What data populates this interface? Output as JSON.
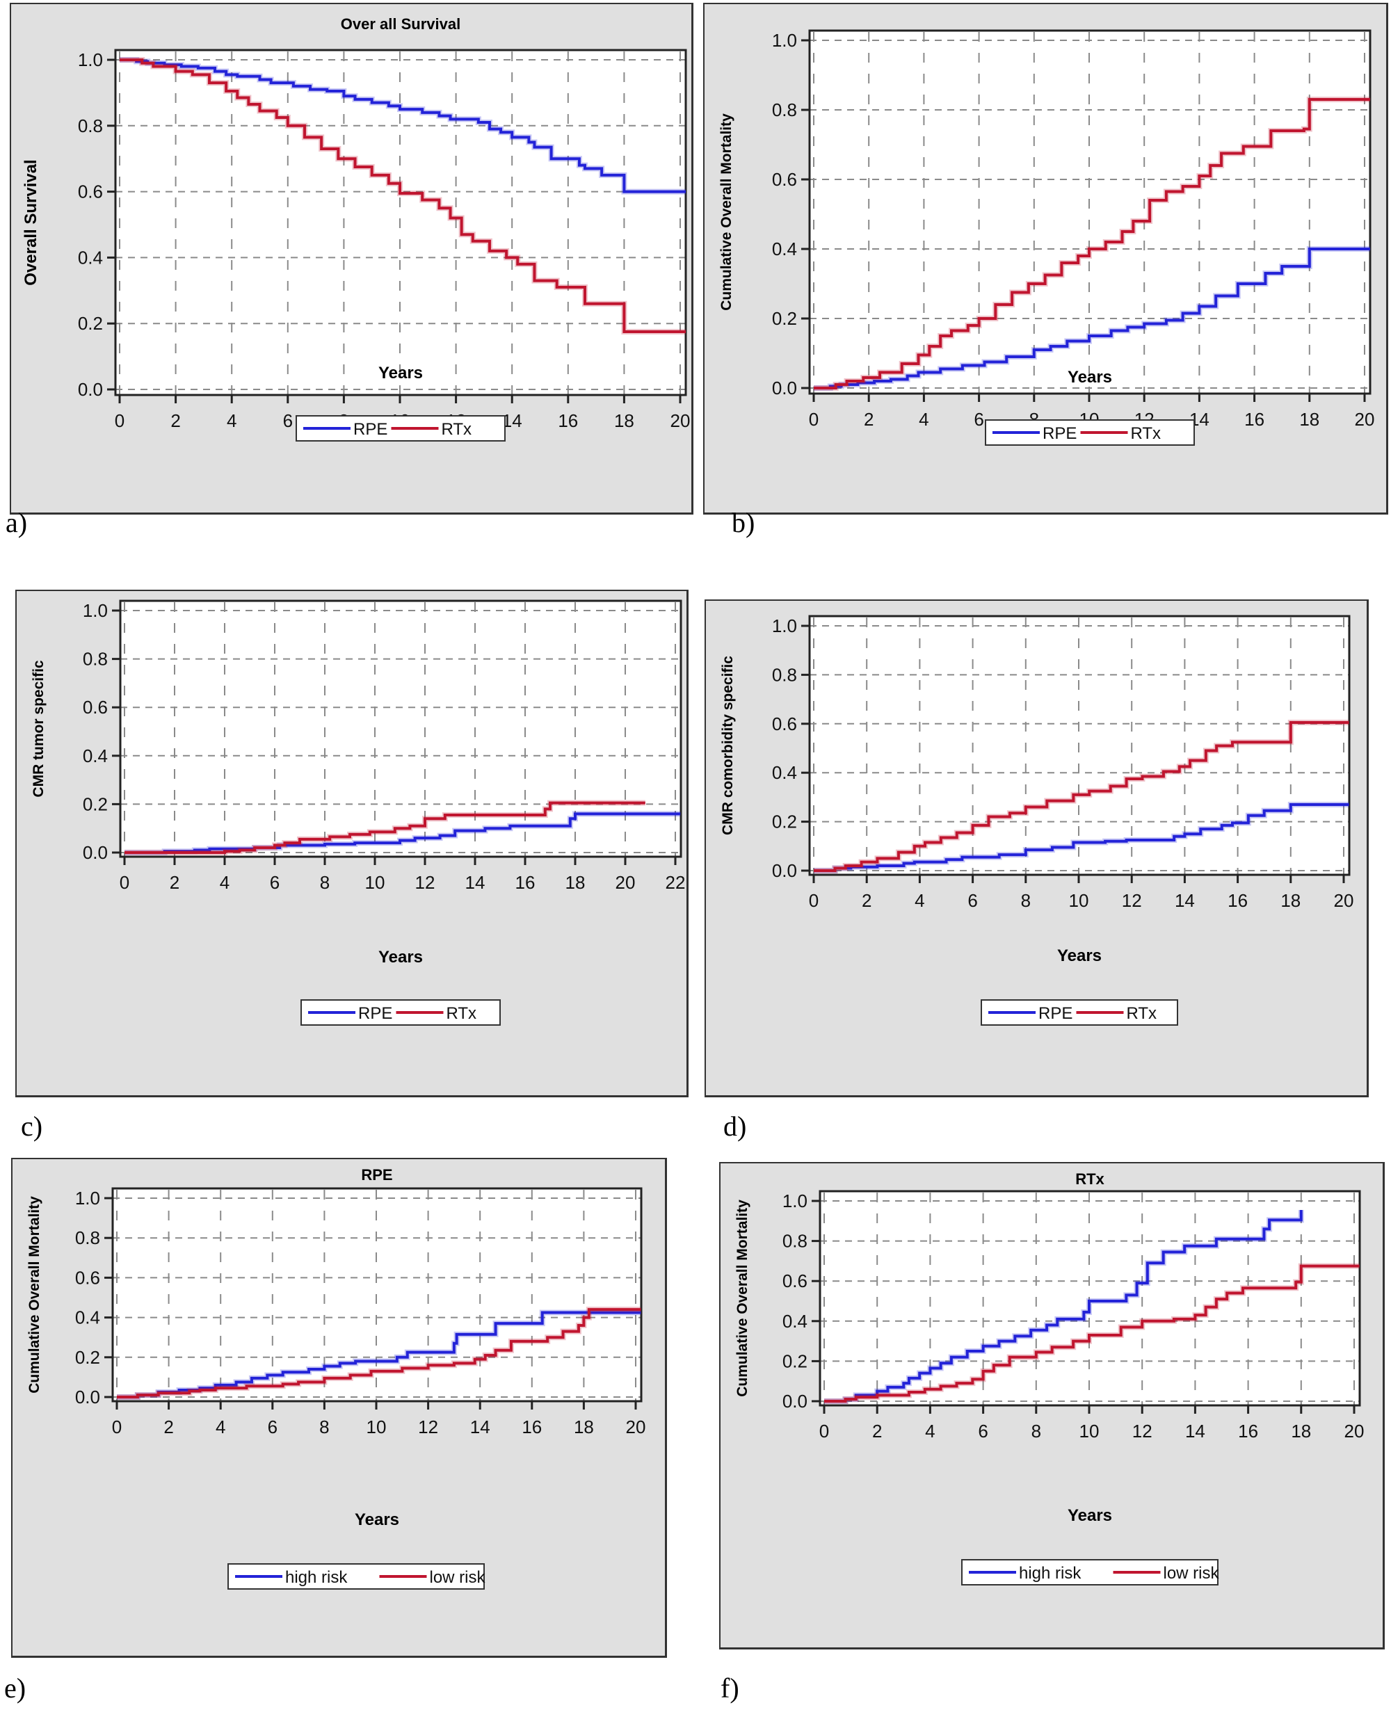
{
  "figure_labels": [
    "a)",
    "b)",
    "c)",
    "d)",
    "e)",
    "f)"
  ],
  "colors": {
    "blue": "#2323d8",
    "red": "#c0152f",
    "panel_bg": "#e0e0e0",
    "grid": "#8a8a8a"
  },
  "chart_data": [
    {
      "id": "a",
      "type": "line",
      "step": true,
      "title": "Over all Survival",
      "xlabel": "Years",
      "ylabel": "Overall Survival",
      "xlim": [
        0,
        20
      ],
      "ylim": [
        0,
        1.0
      ],
      "xticks": [
        0,
        2,
        4,
        6,
        8,
        10,
        12,
        14,
        16,
        18,
        20
      ],
      "yticks": [
        0.0,
        0.2,
        0.4,
        0.6,
        0.8,
        1.0
      ],
      "grid": true,
      "legend": "bottom-center",
      "series": [
        {
          "name": "RPE",
          "color": "blue",
          "x": [
            0,
            0.6,
            1.0,
            1.6,
            2.2,
            2.8,
            3.4,
            3.8,
            4.2,
            5.0,
            5.4,
            6.2,
            6.8,
            7.4,
            8.0,
            8.4,
            9.0,
            9.6,
            10.0,
            10.8,
            11.4,
            11.8,
            12.8,
            13.2,
            13.6,
            14.0,
            14.6,
            14.8,
            15.4,
            16.4,
            16.6,
            17.2,
            18.0,
            20.2
          ],
          "y": [
            1.0,
            0.995,
            0.99,
            0.985,
            0.98,
            0.975,
            0.965,
            0.955,
            0.95,
            0.94,
            0.93,
            0.92,
            0.91,
            0.905,
            0.89,
            0.88,
            0.87,
            0.86,
            0.85,
            0.84,
            0.83,
            0.82,
            0.81,
            0.79,
            0.78,
            0.765,
            0.75,
            0.735,
            0.7,
            0.68,
            0.67,
            0.65,
            0.6,
            0.6
          ]
        },
        {
          "name": "RTx",
          "color": "red",
          "x": [
            0,
            0.8,
            1.2,
            2.0,
            2.6,
            3.2,
            3.8,
            4.2,
            4.6,
            5.0,
            5.6,
            6.0,
            6.6,
            7.2,
            7.8,
            8.4,
            9.0,
            9.6,
            10.0,
            10.8,
            11.4,
            11.8,
            12.2,
            12.6,
            13.2,
            13.8,
            14.2,
            14.8,
            15.6,
            16.6,
            17.8,
            18.0,
            20.2
          ],
          "y": [
            1.0,
            0.99,
            0.98,
            0.965,
            0.955,
            0.93,
            0.905,
            0.885,
            0.865,
            0.845,
            0.825,
            0.8,
            0.765,
            0.73,
            0.7,
            0.675,
            0.65,
            0.625,
            0.595,
            0.575,
            0.55,
            0.52,
            0.47,
            0.45,
            0.42,
            0.4,
            0.38,
            0.33,
            0.31,
            0.26,
            0.26,
            0.175,
            0.175
          ]
        }
      ]
    },
    {
      "id": "b",
      "type": "line",
      "step": true,
      "title": "",
      "xlabel": "Years",
      "ylabel": "Cumulative Overall Mortality",
      "xlim": [
        0,
        20
      ],
      "ylim": [
        0,
        1.0
      ],
      "xticks": [
        0,
        2,
        4,
        6,
        8,
        10,
        12,
        14,
        16,
        18,
        20
      ],
      "yticks": [
        0.0,
        0.2,
        0.4,
        0.6,
        0.8,
        1.0
      ],
      "grid": true,
      "legend": "bottom-center",
      "series": [
        {
          "name": "RPE",
          "color": "blue",
          "x": [
            0,
            0.6,
            1.0,
            1.6,
            2.2,
            2.8,
            3.4,
            3.8,
            4.6,
            5.4,
            6.2,
            7.0,
            8.0,
            8.6,
            9.2,
            10.0,
            10.8,
            11.4,
            12.0,
            12.8,
            13.4,
            14.0,
            14.6,
            15.4,
            16.4,
            17.0,
            18.0,
            20.2
          ],
          "y": [
            0.0,
            0.005,
            0.01,
            0.015,
            0.02,
            0.025,
            0.035,
            0.045,
            0.055,
            0.065,
            0.075,
            0.09,
            0.11,
            0.12,
            0.135,
            0.15,
            0.165,
            0.175,
            0.185,
            0.195,
            0.215,
            0.235,
            0.265,
            0.3,
            0.33,
            0.35,
            0.4,
            0.4
          ]
        },
        {
          "name": "RTx",
          "color": "red",
          "x": [
            0,
            0.8,
            1.2,
            1.8,
            2.4,
            3.2,
            3.8,
            4.2,
            4.6,
            5.0,
            5.6,
            6.0,
            6.6,
            7.2,
            7.8,
            8.4,
            9.0,
            9.6,
            10.0,
            10.6,
            11.2,
            11.6,
            12.2,
            12.8,
            13.4,
            14.0,
            14.4,
            14.8,
            15.6,
            16.6,
            17.8,
            18.0,
            20.2
          ],
          "y": [
            0.0,
            0.01,
            0.02,
            0.03,
            0.045,
            0.07,
            0.095,
            0.12,
            0.15,
            0.165,
            0.18,
            0.2,
            0.24,
            0.275,
            0.3,
            0.325,
            0.36,
            0.38,
            0.4,
            0.42,
            0.45,
            0.48,
            0.54,
            0.565,
            0.58,
            0.61,
            0.64,
            0.675,
            0.695,
            0.74,
            0.745,
            0.83,
            0.83
          ]
        }
      ]
    },
    {
      "id": "c",
      "type": "line",
      "step": true,
      "title": "",
      "xlabel": "Years",
      "ylabel": "CMR tumor specific",
      "xlim": [
        0,
        22
      ],
      "ylim": [
        0,
        1.0
      ],
      "xticks": [
        0,
        2,
        4,
        6,
        8,
        10,
        12,
        14,
        16,
        18,
        20,
        22
      ],
      "yticks": [
        0.0,
        0.2,
        0.4,
        0.6,
        0.8,
        1.0
      ],
      "grid": true,
      "legend": "bottom-center",
      "series": [
        {
          "name": "RPE",
          "color": "blue",
          "x": [
            0,
            1.6,
            2.8,
            3.4,
            5.2,
            6.2,
            8.0,
            9.2,
            11.0,
            11.6,
            12.6,
            13.2,
            14.4,
            15.4,
            17.8,
            18.0,
            22.2
          ],
          "y": [
            0.0,
            0.005,
            0.01,
            0.015,
            0.02,
            0.03,
            0.035,
            0.04,
            0.05,
            0.06,
            0.07,
            0.09,
            0.1,
            0.11,
            0.14,
            0.16,
            0.16
          ]
        },
        {
          "name": "RTx",
          "color": "red",
          "x": [
            0,
            4.0,
            4.6,
            5.2,
            6.0,
            6.4,
            7.0,
            8.2,
            9.0,
            9.8,
            10.8,
            11.4,
            12.0,
            12.8,
            16.8,
            17.0,
            20.8
          ],
          "y": [
            0.0,
            0.005,
            0.01,
            0.02,
            0.03,
            0.04,
            0.055,
            0.065,
            0.075,
            0.085,
            0.1,
            0.11,
            0.14,
            0.155,
            0.18,
            0.205,
            0.205
          ]
        }
      ]
    },
    {
      "id": "d",
      "type": "line",
      "step": true,
      "title": "",
      "xlabel": "Years",
      "ylabel": "CMR comorbidity specific",
      "xlim": [
        0,
        20
      ],
      "ylim": [
        0,
        1.0
      ],
      "xticks": [
        0,
        2,
        4,
        6,
        8,
        10,
        12,
        14,
        16,
        18,
        20
      ],
      "yticks": [
        0.0,
        0.2,
        0.4,
        0.6,
        0.8,
        1.0
      ],
      "grid": true,
      "legend": "bottom-center",
      "series": [
        {
          "name": "RPE",
          "color": "blue",
          "x": [
            0,
            0.8,
            1.4,
            2.4,
            3.4,
            3.8,
            5.0,
            5.6,
            7.0,
            8.0,
            9.0,
            9.8,
            11.0,
            11.8,
            13.6,
            14.0,
            14.6,
            15.4,
            15.8,
            16.4,
            17.0,
            18.0,
            20.2
          ],
          "y": [
            0.0,
            0.01,
            0.015,
            0.02,
            0.03,
            0.035,
            0.045,
            0.055,
            0.065,
            0.085,
            0.095,
            0.115,
            0.12,
            0.125,
            0.14,
            0.15,
            0.17,
            0.185,
            0.195,
            0.225,
            0.245,
            0.27,
            0.27
          ]
        },
        {
          "name": "RTx",
          "color": "red",
          "x": [
            0,
            0.8,
            1.2,
            1.8,
            2.4,
            3.2,
            3.8,
            4.2,
            4.8,
            5.4,
            6.0,
            6.6,
            7.4,
            8.0,
            8.8,
            9.8,
            10.4,
            11.2,
            11.8,
            12.4,
            13.2,
            13.8,
            14.2,
            14.8,
            15.2,
            15.8,
            17.8,
            18.0,
            20.2
          ],
          "y": [
            0.0,
            0.01,
            0.02,
            0.035,
            0.05,
            0.075,
            0.1,
            0.115,
            0.135,
            0.155,
            0.185,
            0.22,
            0.235,
            0.26,
            0.285,
            0.31,
            0.325,
            0.345,
            0.375,
            0.385,
            0.405,
            0.425,
            0.45,
            0.49,
            0.51,
            0.525,
            0.525,
            0.605,
            0.605
          ]
        }
      ]
    },
    {
      "id": "e",
      "type": "line",
      "step": true,
      "title": "RPE",
      "xlabel": "Years",
      "ylabel": "Cumulative Overall Mortality",
      "xlim": [
        0,
        20
      ],
      "ylim": [
        0,
        1.0
      ],
      "xticks": [
        0,
        2,
        4,
        6,
        8,
        10,
        12,
        14,
        16,
        18,
        20
      ],
      "yticks": [
        0.0,
        0.2,
        0.4,
        0.6,
        0.8,
        1.0
      ],
      "grid": true,
      "legend": "bottom-center",
      "series": [
        {
          "name": "high risk",
          "color": "blue",
          "x": [
            0,
            0.8,
            1.6,
            2.4,
            3.2,
            3.8,
            4.6,
            5.2,
            5.8,
            6.4,
            7.4,
            8.0,
            8.6,
            9.2,
            10.8,
            11.2,
            13.0,
            13.1,
            14.6,
            16.4,
            20.2
          ],
          "y": [
            0.0,
            0.01,
            0.025,
            0.035,
            0.045,
            0.06,
            0.075,
            0.095,
            0.11,
            0.125,
            0.14,
            0.155,
            0.17,
            0.18,
            0.2,
            0.225,
            0.27,
            0.315,
            0.37,
            0.425,
            0.425
          ]
        },
        {
          "name": "low risk",
          "color": "red",
          "x": [
            0,
            0.8,
            1.6,
            2.8,
            3.2,
            3.8,
            5.0,
            6.4,
            7.0,
            8.0,
            9.0,
            9.8,
            11.0,
            12.0,
            13.0,
            13.8,
            14.2,
            14.6,
            15.2,
            16.6,
            17.2,
            17.8,
            18.0,
            18.2,
            20.2
          ],
          "y": [
            0.0,
            0.01,
            0.02,
            0.03,
            0.035,
            0.045,
            0.055,
            0.065,
            0.075,
            0.095,
            0.11,
            0.13,
            0.145,
            0.16,
            0.17,
            0.19,
            0.21,
            0.235,
            0.28,
            0.3,
            0.33,
            0.36,
            0.4,
            0.44,
            0.44
          ]
        }
      ]
    },
    {
      "id": "f",
      "type": "line",
      "step": true,
      "title": "RTx",
      "xlabel": "Years",
      "ylabel": "Cumulative Overall Mortality",
      "xlim": [
        0,
        20
      ],
      "ylim": [
        0,
        1.0
      ],
      "xticks": [
        0,
        2,
        4,
        6,
        8,
        10,
        12,
        14,
        16,
        18,
        20
      ],
      "yticks": [
        0.0,
        0.2,
        0.4,
        0.6,
        0.8,
        1.0
      ],
      "grid": true,
      "legend": "bottom-center",
      "series": [
        {
          "name": "high risk",
          "color": "blue",
          "x": [
            0,
            0.8,
            1.2,
            2.0,
            2.4,
            3.0,
            3.2,
            3.6,
            4.0,
            4.4,
            4.8,
            5.4,
            6.0,
            6.6,
            7.2,
            7.8,
            8.4,
            8.8,
            9.8,
            10.0,
            11.4,
            11.8,
            12.2,
            12.8,
            13.6,
            14.8,
            16.6,
            16.8,
            18.0
          ],
          "y": [
            0.0,
            0.01,
            0.03,
            0.05,
            0.07,
            0.09,
            0.115,
            0.14,
            0.165,
            0.19,
            0.22,
            0.25,
            0.275,
            0.3,
            0.325,
            0.355,
            0.38,
            0.41,
            0.445,
            0.5,
            0.53,
            0.59,
            0.69,
            0.745,
            0.775,
            0.81,
            0.86,
            0.905,
            0.955
          ]
        },
        {
          "name": "low risk",
          "color": "red",
          "x": [
            0,
            0.8,
            1.2,
            2.0,
            3.2,
            3.8,
            4.4,
            5.0,
            5.6,
            6.0,
            6.4,
            7.0,
            8.0,
            8.6,
            9.4,
            10.0,
            11.2,
            12.0,
            13.2,
            14.0,
            14.4,
            14.8,
            15.2,
            15.8,
            17.8,
            18.0,
            20.2
          ],
          "y": [
            0.0,
            0.01,
            0.02,
            0.03,
            0.045,
            0.06,
            0.075,
            0.09,
            0.11,
            0.15,
            0.18,
            0.22,
            0.245,
            0.27,
            0.3,
            0.33,
            0.37,
            0.4,
            0.41,
            0.43,
            0.47,
            0.51,
            0.54,
            0.565,
            0.595,
            0.675,
            0.675
          ]
        }
      ]
    }
  ]
}
